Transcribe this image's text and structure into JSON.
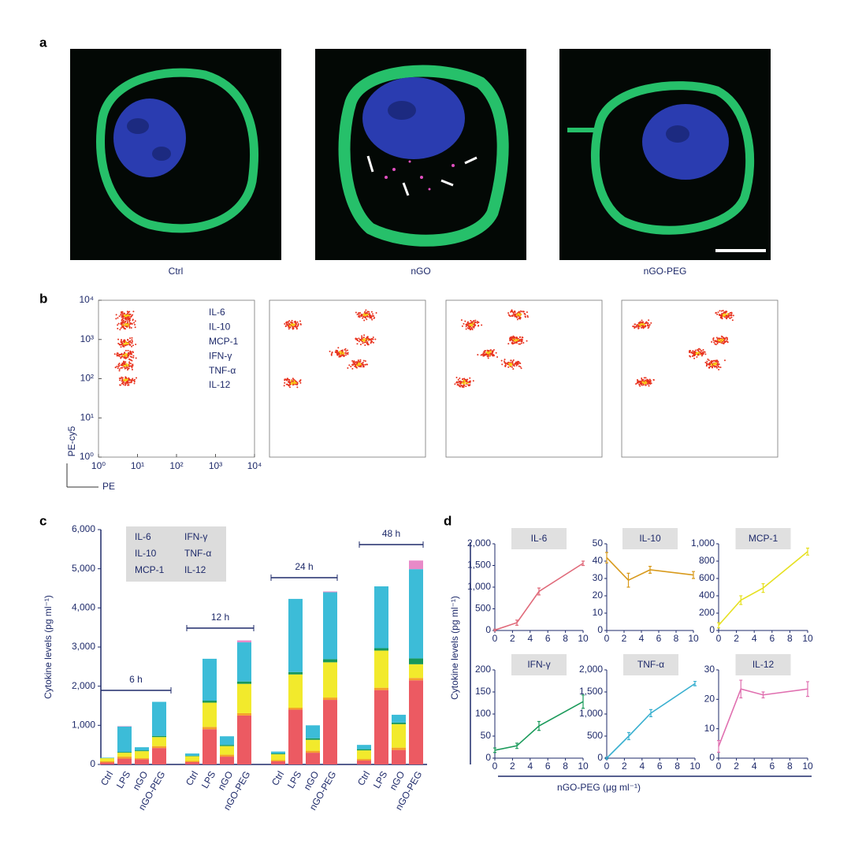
{
  "panel_labels": [
    "a",
    "b",
    "c",
    "d"
  ],
  "images": {
    "captions": [
      "Ctrl",
      "nGO",
      "nGO-PEG"
    ]
  },
  "chart_data": [
    {
      "type": "scatter",
      "log_scale": true,
      "xlabel": "PE",
      "ylabel": "PE-cy5",
      "labels": [
        "IL-6",
        "IL-10",
        "MCP-1",
        "IFN-γ",
        "TNF-α",
        "IL-12"
      ],
      "color": "#e8321e",
      "xlim": [
        1,
        10000
      ],
      "ylim": [
        1,
        10000
      ],
      "xticks": [
        {
          "value": 1,
          "label": "10⁰"
        },
        {
          "value": 10,
          "label": "10¹"
        },
        {
          "value": 100,
          "label": "10²"
        },
        {
          "value": 1000,
          "label": "10³"
        },
        {
          "value": 10000,
          "label": "10⁴"
        }
      ],
      "yticks": [
        {
          "value": 1,
          "label": "10⁰"
        },
        {
          "value": 10,
          "label": "10¹"
        },
        {
          "value": 100,
          "label": "10²"
        },
        {
          "value": 1000,
          "label": "10³"
        },
        {
          "value": 10000,
          "label": "10⁴"
        }
      ],
      "x": [
        5,
        5,
        5,
        5,
        5,
        5
      ],
      "y": [
        4000,
        2400,
        800,
        400,
        220,
        90
      ]
    },
    {
      "type": "scatter",
      "log_scale": true,
      "color": "#e8321e",
      "xlim": [
        1,
        10000
      ],
      "ylim": [
        1,
        10000
      ],
      "x": [
        4,
        300,
        280,
        66,
        190,
        4
      ],
      "y": [
        2400,
        4200,
        940,
        450,
        235,
        80
      ]
    },
    {
      "type": "scatter",
      "log_scale": true,
      "color": "#e8321e",
      "xlim": [
        1,
        10000
      ],
      "ylim": [
        1,
        10000
      ],
      "x": [
        4.5,
        70,
        63,
        12,
        46,
        3
      ],
      "y": [
        2400,
        4200,
        940,
        450,
        235,
        80
      ]
    },
    {
      "type": "scatter",
      "log_scale": true,
      "color": "#e8321e",
      "xlim": [
        1,
        10000
      ],
      "ylim": [
        1,
        10000
      ],
      "x": [
        3.4,
        440,
        350,
        87,
        230,
        3.9
      ],
      "y": [
        2400,
        4200,
        940,
        450,
        235,
        80
      ]
    },
    {
      "type": "bar",
      "stacked": true,
      "ylabel": "Cytokine levels (pg ml⁻¹)",
      "categories": [
        "Ctrl",
        "LPS",
        "nGO",
        "nGO-PEG",
        "Ctrl",
        "LPS",
        "nGO",
        "nGO-PEG",
        "Ctrl",
        "LPS",
        "nGO",
        "nGO-PEG",
        "Ctrl",
        "LPS",
        "nGO",
        "nGO-PEG"
      ],
      "groups": [
        "6 h",
        "12 h",
        "24 h",
        "48 h"
      ],
      "ylim": [
        0,
        6000
      ],
      "yticks": [
        0,
        {
          "value": 1000,
          "label": "1,000"
        },
        {
          "value": 2000,
          "label": "2,000"
        },
        {
          "value": 3000,
          "label": "3,000"
        },
        {
          "value": 4000,
          "label": "4,000"
        },
        {
          "value": 5000,
          "label": "5,000"
        },
        {
          "value": 6000,
          "label": "6,000"
        }
      ],
      "series": [
        {
          "name": "IL-6",
          "color": "#ec5a62",
          "values": [
            50,
            150,
            130,
            420,
            60,
            900,
            200,
            1250,
            80,
            1400,
            300,
            1650,
            100,
            1900,
            370,
            2150
          ]
        },
        {
          "name": "IL-10",
          "color": "#f5a22a",
          "values": [
            30,
            50,
            30,
            50,
            30,
            60,
            50,
            60,
            30,
            50,
            50,
            60,
            40,
            60,
            60,
            60
          ]
        },
        {
          "name": "MCP-1",
          "color": "#f2ea2c",
          "values": [
            80,
            100,
            180,
            230,
            120,
            620,
            220,
            750,
            150,
            850,
            280,
            900,
            220,
            950,
            600,
            350
          ]
        },
        {
          "name": "IFN-γ",
          "color": "#17985a",
          "values": [
            5,
            20,
            20,
            30,
            10,
            50,
            30,
            60,
            20,
            60,
            40,
            80,
            30,
            60,
            40,
            150
          ]
        },
        {
          "name": "TNF-α",
          "color": "#3cbcd8",
          "values": [
            10,
            650,
            80,
            870,
            60,
            1070,
            220,
            1000,
            50,
            1870,
            330,
            1710,
            110,
            1580,
            200,
            2280
          ]
        },
        {
          "name": "IL-12",
          "color": "#e88ac8",
          "values": [
            0,
            10,
            0,
            0,
            0,
            0,
            0,
            50,
            0,
            0,
            0,
            20,
            0,
            0,
            0,
            220
          ]
        }
      ]
    },
    {
      "type": "line",
      "title": "IL-6",
      "color": "#e06a7a",
      "x": [
        0,
        2.5,
        5,
        10
      ],
      "values": [
        10,
        180,
        900,
        1550
      ],
      "errors": [
        20,
        60,
        80,
        50
      ],
      "xlim": [
        0,
        10
      ],
      "xticks": [
        0,
        2,
        4,
        6,
        8,
        10
      ],
      "ylim": [
        0,
        2000
      ],
      "yticks": [
        0,
        500,
        {
          "value": 1000,
          "label": "1,000"
        },
        {
          "value": 1500,
          "label": "1,500"
        },
        {
          "value": 2000,
          "label": "2,000"
        }
      ]
    },
    {
      "type": "line",
      "title": "IL-10",
      "color": "#d89a1c",
      "x": [
        0,
        2.5,
        5,
        10
      ],
      "values": [
        42,
        29,
        35,
        32
      ],
      "errors": [
        3,
        4,
        2,
        2
      ],
      "xlim": [
        0,
        10
      ],
      "xticks": [
        0,
        2,
        4,
        6,
        8,
        10
      ],
      "ylim": [
        0,
        50
      ],
      "yticks": [
        0,
        10,
        20,
        30,
        40,
        50
      ]
    },
    {
      "type": "line",
      "title": "MCP-1",
      "color": "#e6e020",
      "x": [
        0,
        2.5,
        5,
        10
      ],
      "values": [
        60,
        350,
        490,
        910
      ],
      "errors": [
        30,
        50,
        50,
        40
      ],
      "xlim": [
        0,
        10
      ],
      "xticks": [
        0,
        2,
        4,
        6,
        8,
        10
      ],
      "ylim": [
        0,
        1000
      ],
      "yticks": [
        0,
        200,
        400,
        600,
        800,
        {
          "value": 1000,
          "label": "1,000"
        }
      ]
    },
    {
      "type": "line",
      "title": "IFN-γ",
      "color": "#1a9a5a",
      "x": [
        0,
        2.5,
        5,
        10
      ],
      "values": [
        18,
        28,
        73,
        128
      ],
      "errors": [
        5,
        6,
        10,
        15
      ],
      "xlim": [
        0,
        10
      ],
      "xticks": [
        0,
        2,
        4,
        6,
        8,
        10
      ],
      "ylim": [
        0,
        200
      ],
      "yticks": [
        0,
        50,
        100,
        150,
        200
      ]
    },
    {
      "type": "line",
      "title": "TNF-α",
      "color": "#3ab0d0",
      "x": [
        0,
        2.5,
        5,
        10
      ],
      "values": [
        0,
        500,
        1020,
        1690
      ],
      "errors": [
        20,
        80,
        80,
        50
      ],
      "xlim": [
        0,
        10
      ],
      "xticks": [
        0,
        2,
        4,
        6,
        8,
        10
      ],
      "ylim": [
        0,
        2000
      ],
      "yticks": [
        0,
        500,
        {
          "value": 1000,
          "label": "1,000"
        },
        {
          "value": 1500,
          "label": "1,500"
        },
        {
          "value": 2000,
          "label": "2,000"
        }
      ]
    },
    {
      "type": "line",
      "title": "IL-12",
      "color": "#e070b0",
      "x": [
        0,
        2.5,
        5,
        10
      ],
      "values": [
        4,
        23.5,
        21.5,
        23.5
      ],
      "errors": [
        2,
        3,
        1,
        2.5
      ],
      "xlim": [
        0,
        10
      ],
      "xticks": [
        0,
        2,
        4,
        6,
        8,
        10
      ],
      "ylim": [
        0,
        30
      ],
      "yticks": [
        0,
        10,
        20,
        30
      ]
    }
  ],
  "panel_d": {
    "xlabel": "nGO-PEG (μg ml⁻¹)",
    "ylabel": "Cytokine levels (pg ml⁻¹)"
  }
}
